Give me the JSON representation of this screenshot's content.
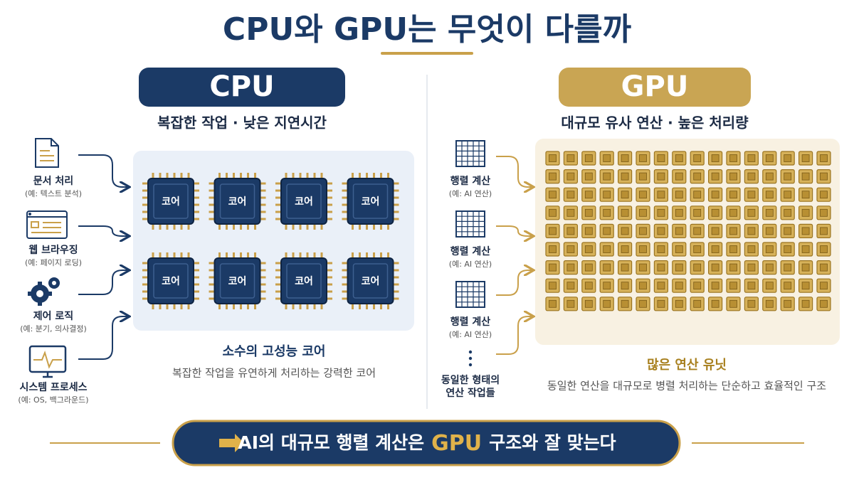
{
  "title": "CPU와 GPU는 무엇이 다를까",
  "cpu": {
    "label": "CPU",
    "subtitle": "복잡한 작업 · 낮은 지연시간",
    "tasks": [
      {
        "label": "문서 처리",
        "example": "(예: 텍스트 분석)"
      },
      {
        "label": "웹 브라우징",
        "example": "(예: 페이지 로딩)"
      },
      {
        "label": "제어 로직",
        "example": "(예: 분기, 의사결정)"
      },
      {
        "label": "시스템 프로세스",
        "example": "(예: OS, 백그라운드)"
      }
    ],
    "cores": [
      "코어",
      "코어",
      "코어",
      "코어",
      "코어",
      "코어",
      "코어",
      "코어"
    ],
    "caption": "소수의 고성능 코어",
    "description": "복잡한 작업을 유연하게 처리하는 강력한 코어"
  },
  "gpu": {
    "label": "GPU",
    "subtitle": "대규모 유사 연산 · 높은 처리량",
    "tasks": [
      {
        "label": "행렬 계산",
        "example": "(예: AI 연산)"
      },
      {
        "label": "행렬 계산",
        "example": "(예: AI 연산)"
      },
      {
        "label": "행렬 계산",
        "example": "(예: AI 연산)"
      }
    ],
    "group_label": [
      "동일한 형태의",
      "연산 작업들"
    ],
    "caption": "많은 연산 유닛",
    "description": "동일한 연산을 대규모로 병렬 처리하는 단순하고 효율적인 구조"
  },
  "footer": {
    "parts": [
      "AI의 대규모 행렬 계산은",
      "GPU",
      "구조와 잘 맞는다"
    ]
  }
}
